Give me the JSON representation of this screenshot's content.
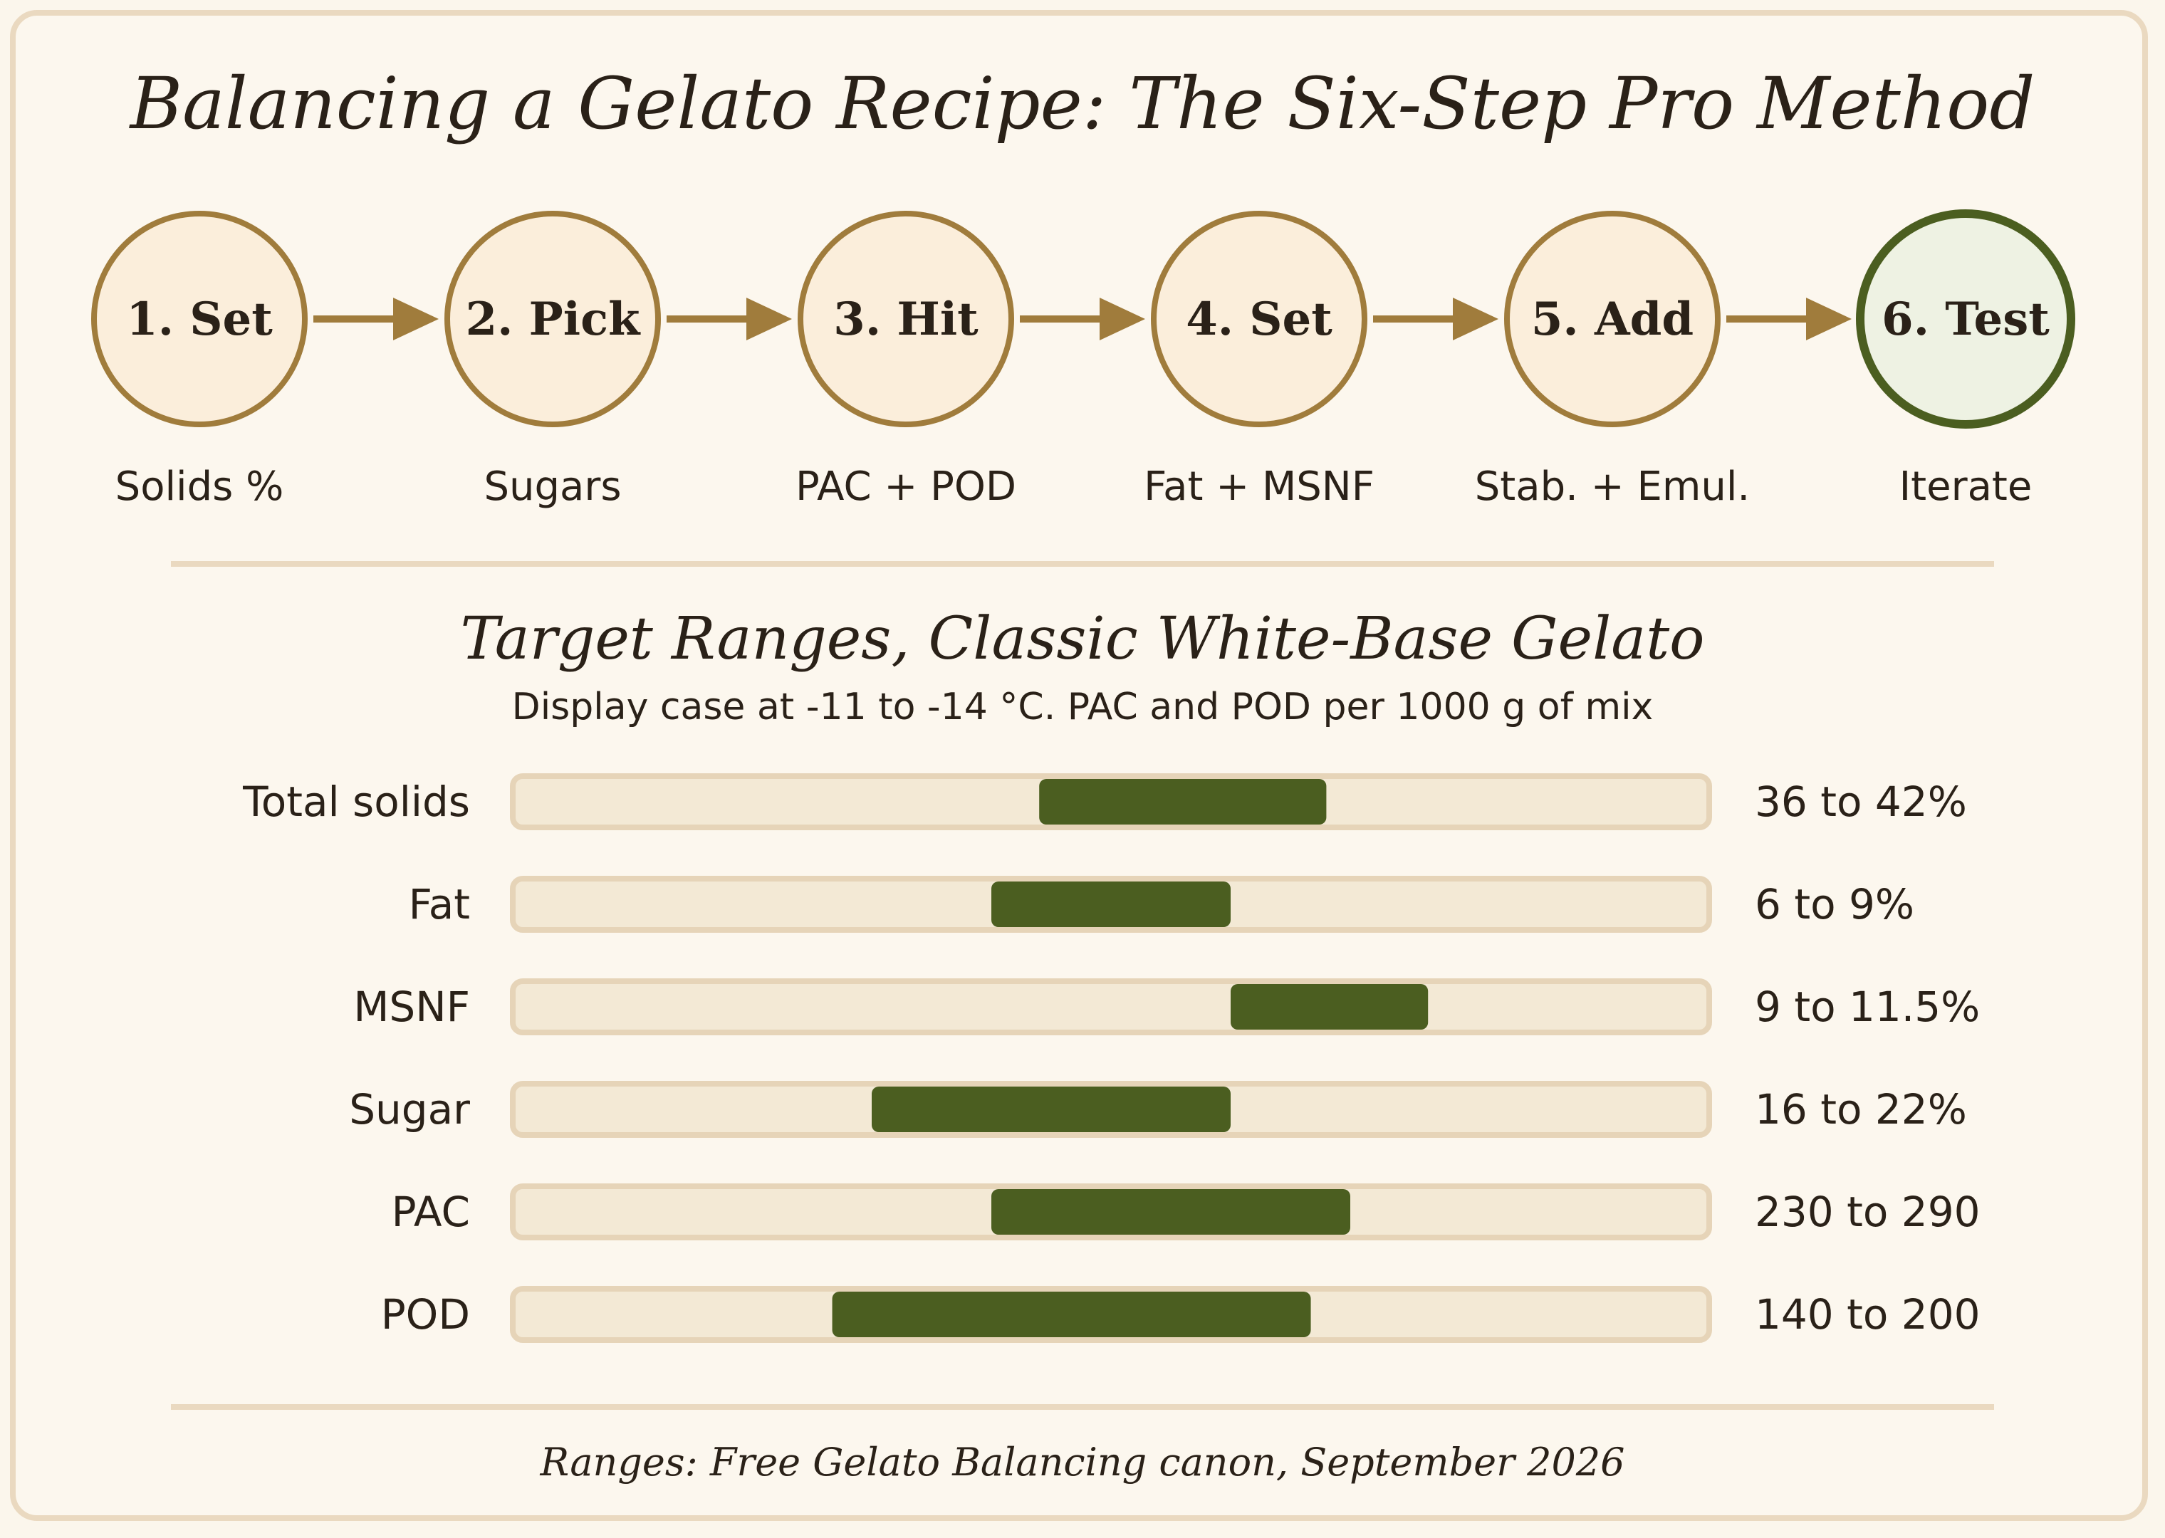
{
  "title": "Balancing a Gelato Recipe: The Six-Step Pro Method",
  "steps": [
    {
      "label": "1. Set",
      "caption": "Solids %"
    },
    {
      "label": "2. Pick",
      "caption": "Sugars"
    },
    {
      "label": "3. Hit",
      "caption": "PAC + POD"
    },
    {
      "label": "4. Set",
      "caption": "Fat + MSNF"
    },
    {
      "label": "5. Add",
      "caption": "Stab. + Emul."
    },
    {
      "label": "6. Test",
      "caption": "Iterate"
    }
  ],
  "ranges_title": "Target Ranges, Classic White-Base Gelato",
  "ranges_subtitle": "Display case at -11 to -14 °C. PAC and POD per 1000 g of mix",
  "ranges": [
    {
      "label": "Total solids",
      "value_text": "36 to 42%",
      "start": 0.44,
      "end": 0.68
    },
    {
      "label": "Fat",
      "value_text": "6 to 9%",
      "start": 0.4,
      "end": 0.6
    },
    {
      "label": "MSNF",
      "value_text": "9 to 11.5%",
      "start": 0.6,
      "end": 0.765
    },
    {
      "label": "Sugar",
      "value_text": "16 to 22%",
      "start": 0.3,
      "end": 0.6
    },
    {
      "label": "PAC",
      "value_text": "230 to 290",
      "start": 0.4,
      "end": 0.7
    },
    {
      "label": "POD",
      "value_text": "140 to 200",
      "start": 0.267,
      "end": 0.667
    }
  ],
  "footer": "Ranges: Free Gelato Balancing canon, September 2026",
  "colors": {
    "accent": "#a07c3c",
    "final_step": "#4b5e20",
    "bar_fill": "#4b5e20",
    "track": "#f3e9d5",
    "text": "#2a2118"
  }
}
